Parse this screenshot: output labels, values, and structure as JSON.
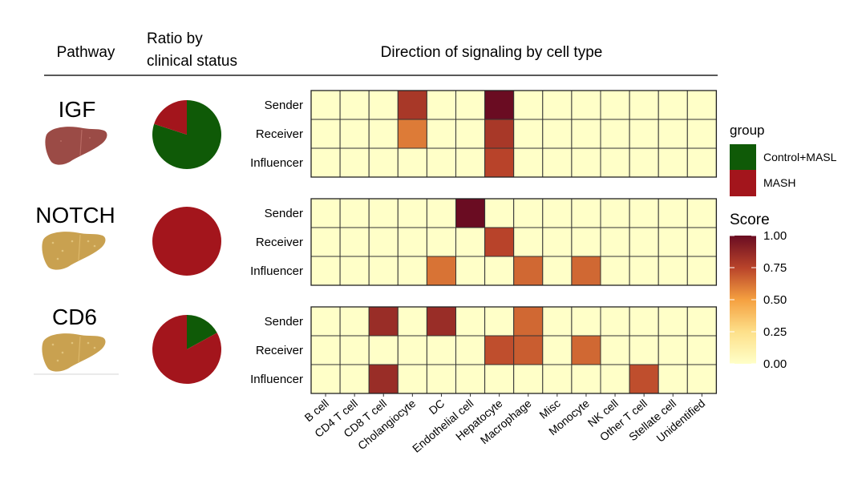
{
  "headers": {
    "pathway": "Pathway",
    "ratio_line1": "Ratio by",
    "ratio_line2": "clinical status",
    "direction": "Direction of signaling by cell type"
  },
  "colors": {
    "control_masl": "#0f5a07",
    "mash": "#a3151c",
    "liver_igf": "#9b4b46",
    "liver_other": "#c9a150",
    "grid_line": "#333333"
  },
  "chart_data": {
    "type": "heatmap",
    "title": "Direction of signaling by cell type",
    "cell_types": [
      "B cell",
      "CD4 T cell",
      "CD8 T cell",
      "Cholangiocyte",
      "DC",
      "Endothelial cell",
      "Hepatocyte",
      "Macrophage",
      "Misc",
      "Monocyte",
      "NK cell",
      "Other T cell",
      "Stellate cell",
      "Unidentified"
    ],
    "roles": [
      "Sender",
      "Receiver",
      "Influencer"
    ],
    "pathways": [
      {
        "name": "IGF",
        "pie": {
          "Control+MASL": 0.8,
          "MASH": 0.2
        },
        "scores": [
          [
            0,
            0,
            0,
            0.8,
            0,
            0,
            1.0,
            0,
            0,
            0,
            0,
            0,
            0,
            0
          ],
          [
            0,
            0,
            0,
            0.6,
            0,
            0,
            0.8,
            0,
            0,
            0,
            0,
            0,
            0,
            0
          ],
          [
            0,
            0,
            0,
            0,
            0,
            0,
            0.75,
            0,
            0,
            0,
            0,
            0,
            0,
            0
          ]
        ]
      },
      {
        "name": "NOTCH",
        "pie": {
          "Control+MASL": 0.0,
          "MASH": 1.0
        },
        "scores": [
          [
            0,
            0,
            0,
            0,
            0,
            1.0,
            0,
            0,
            0,
            0,
            0,
            0,
            0,
            0
          ],
          [
            0,
            0,
            0,
            0,
            0,
            0,
            0.75,
            0,
            0,
            0,
            0,
            0,
            0,
            0
          ],
          [
            0,
            0,
            0,
            0,
            0.62,
            0,
            0,
            0.65,
            0,
            0.65,
            0,
            0,
            0,
            0
          ]
        ]
      },
      {
        "name": "CD6",
        "pie": {
          "Control+MASL": 0.17,
          "MASH": 0.83
        },
        "scores": [
          [
            0,
            0,
            0.85,
            0,
            0.85,
            0,
            0,
            0.65,
            0,
            0,
            0,
            0,
            0,
            0
          ],
          [
            0,
            0,
            0,
            0,
            0,
            0,
            0.72,
            0.68,
            0,
            0.65,
            0,
            0,
            0,
            0
          ],
          [
            0,
            0,
            0.85,
            0,
            0,
            0,
            0,
            0,
            0,
            0,
            0,
            0.72,
            0,
            0
          ]
        ]
      }
    ],
    "legend": {
      "group_title": "group",
      "groups": [
        "Control+MASL",
        "MASH"
      ],
      "score_title": "Score",
      "score_ticks": [
        "1.00",
        "0.75",
        "0.50",
        "0.25",
        "0.00"
      ],
      "score_range": [
        0,
        1
      ]
    }
  }
}
